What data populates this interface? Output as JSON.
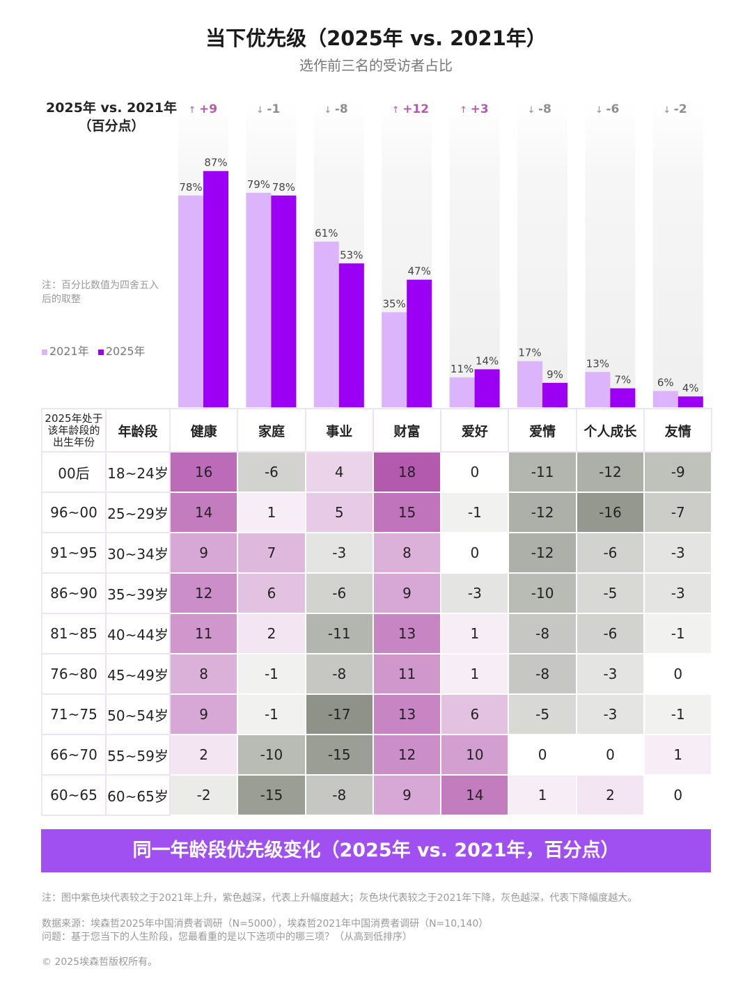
{
  "title": "当下优先级（2025年 vs. 2021年）",
  "subtitle": "选作前三名的受访者占比",
  "comparison_label": [
    "2025年 vs. 2021年",
    "（百分点）"
  ],
  "note": "注：百分比数值为四舍五入后的取整",
  "colors": {
    "y2021": "#dcb4fc",
    "y2025": "#9b00f5",
    "up": "#b35aae",
    "down": "#8e8e8e",
    "banner": "#a050f0"
  },
  "chart_data": [
    {
      "type": "bar",
      "categories": [
        "健康",
        "家庭",
        "事业",
        "财富",
        "爱好",
        "爱情",
        "个人成长",
        "友情"
      ],
      "series": [
        {
          "name": "2021年",
          "values": [
            78,
            79,
            61,
            35,
            11,
            17,
            13,
            6
          ]
        },
        {
          "name": "2025年",
          "values": [
            87,
            78,
            53,
            47,
            14,
            9,
            7,
            4
          ]
        }
      ],
      "change_labels": [
        "+9",
        "-1",
        "-8",
        "+12",
        "+3",
        "-8",
        "-6",
        "-2"
      ],
      "value_suffix": "%",
      "ylim": [
        0,
        100
      ],
      "legend": "left"
    },
    {
      "type": "heatmap",
      "header": [
        "2025年处于该年龄段的出生年份",
        "年龄段",
        "健康",
        "家庭",
        "事业",
        "财富",
        "爱好",
        "爱情",
        "个人成长",
        "友情"
      ],
      "rows": [
        {
          "birth": "00后",
          "age": "18~24岁",
          "values": [
            16,
            -6,
            4,
            18,
            0,
            -11,
            -12,
            -9
          ]
        },
        {
          "birth": "96~00",
          "age": "25~29岁",
          "values": [
            14,
            1,
            5,
            15,
            -1,
            -12,
            -16,
            -7
          ]
        },
        {
          "birth": "91~95",
          "age": "30~34岁",
          "values": [
            9,
            7,
            -3,
            8,
            0,
            -12,
            -6,
            -3
          ]
        },
        {
          "birth": "86~90",
          "age": "35~39岁",
          "values": [
            12,
            6,
            -6,
            9,
            -3,
            -10,
            -5,
            -3
          ]
        },
        {
          "birth": "81~85",
          "age": "40~44岁",
          "values": [
            11,
            2,
            -11,
            13,
            1,
            -8,
            -6,
            -1
          ]
        },
        {
          "birth": "76~80",
          "age": "45~49岁",
          "values": [
            8,
            -1,
            -8,
            11,
            1,
            -8,
            -3,
            0
          ]
        },
        {
          "birth": "71~75",
          "age": "50~54岁",
          "values": [
            9,
            -1,
            -17,
            13,
            6,
            -5,
            -3,
            -1
          ]
        },
        {
          "birth": "66~70",
          "age": "55~59岁",
          "values": [
            2,
            -10,
            -15,
            12,
            10,
            0,
            0,
            1
          ]
        },
        {
          "birth": "60~65",
          "age": "60~65岁",
          "values": [
            -2,
            -15,
            -8,
            9,
            14,
            1,
            2,
            0
          ]
        }
      ],
      "title": "同一年龄段优先级变化（2025年 vs. 2021年，百分点）"
    }
  ],
  "footer": {
    "note": "注：图中紫色块代表较之于2021年上升，紫色越深，代表上升幅度越大；灰色块代表较之于2021年下降，灰色越深，代表下降幅度越大。",
    "source": "数据来源：埃森哲2025年中国消费者调研（N=5000），埃森哲2021年中国消费者调研（N=10,140）",
    "question": "问题：基于您当下的人生阶段，您最看重的是以下选项中的哪三项？（从高到低排序）",
    "copyright": "© 2025埃森哲版权所有。"
  }
}
